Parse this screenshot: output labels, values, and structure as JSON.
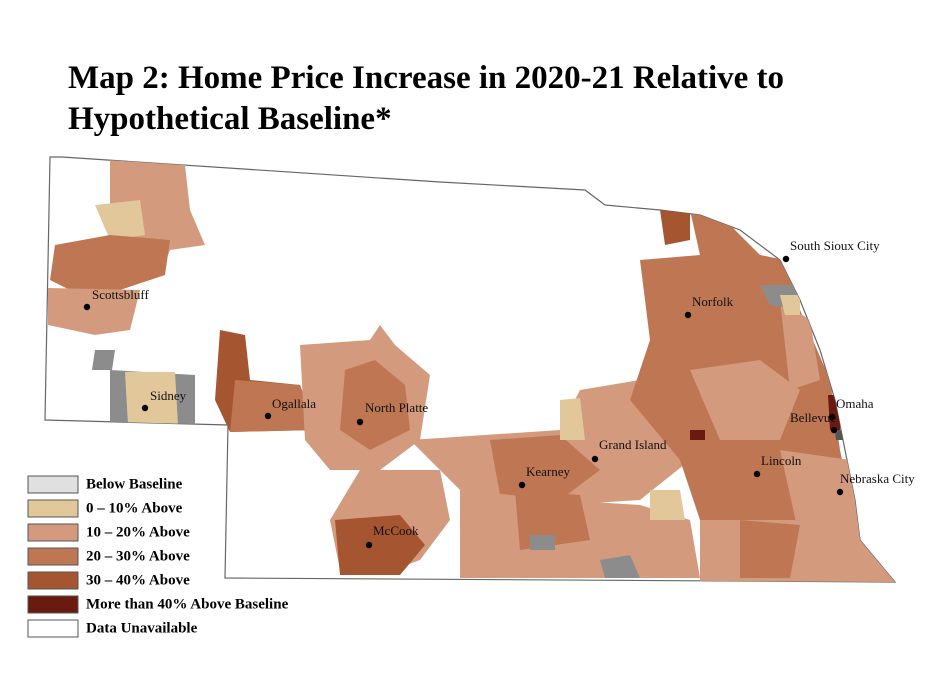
{
  "title": "Map 2: Home Price Increase in 2020-21 Relative to Hypothetical Baseline*",
  "legend": [
    {
      "label": "Below Baseline",
      "color": "#e0e0e0"
    },
    {
      "label": "0 – 10% Above",
      "color": "#e2c79b"
    },
    {
      "label": "10 – 20% Above",
      "color": "#d39a7e"
    },
    {
      "label": "20 – 30% Above",
      "color": "#be7752"
    },
    {
      "label": "30 – 40% Above",
      "color": "#a55530"
    },
    {
      "label": "More than 40% Above Baseline",
      "color": "#6b1a10"
    },
    {
      "label": "Data Unavailable",
      "color": "#ffffff"
    }
  ],
  "cities": [
    "Scottsbluff",
    "Sidney",
    "Ogallala",
    "North Platte",
    "McCook",
    "Kearney",
    "Grand Island",
    "Norfolk",
    "South Sioux City",
    "Omaha",
    "Bellevue",
    "Lincoln",
    "Nebraska City"
  ]
}
